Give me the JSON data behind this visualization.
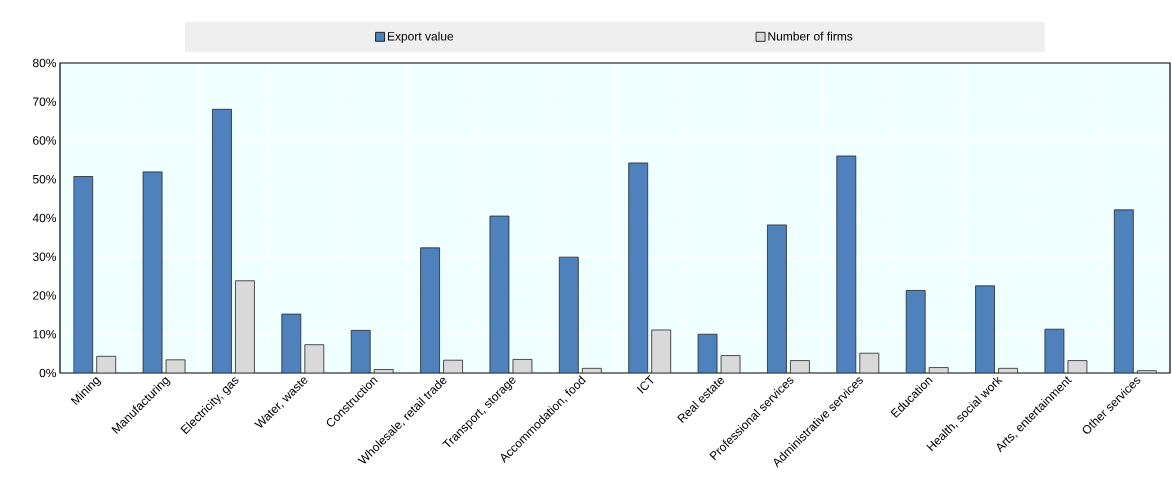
{
  "chart_data": {
    "type": "bar",
    "categories": [
      "Mining",
      "Manufacturing",
      "Electricity, gas",
      "Water, waste",
      "Construction",
      "Wholesale, retail trade",
      "Transport, storage",
      "Accommodation, food",
      "ICT",
      "Real estate",
      "Professional services",
      "Administrative services",
      "Education",
      "Health, social work",
      "Arts, entertainment",
      "Other services"
    ],
    "series": [
      {
        "name": "Export value",
        "color": "#4f81bd",
        "values": [
          50.7,
          51.9,
          68.1,
          15.2,
          11.0,
          32.3,
          40.5,
          29.9,
          54.2,
          10.0,
          38.2,
          56.0,
          21.3,
          22.5,
          11.3,
          42.1
        ]
      },
      {
        "name": "Number of firms",
        "color": "#d9d9d9",
        "values": [
          4.3,
          3.4,
          23.8,
          7.3,
          0.9,
          3.3,
          3.5,
          1.2,
          11.1,
          4.5,
          3.2,
          5.1,
          1.4,
          1.2,
          3.2,
          0.6
        ]
      }
    ],
    "ylim": [
      0,
      80
    ],
    "yticks": [
      {
        "value": 0,
        "label": "0%"
      },
      {
        "value": 10,
        "label": "10%"
      },
      {
        "value": 20,
        "label": "20%"
      },
      {
        "value": 30,
        "label": "30%"
      },
      {
        "value": 40,
        "label": "40%"
      },
      {
        "value": 50,
        "label": "50%"
      },
      {
        "value": 60,
        "label": "60%"
      },
      {
        "value": 70,
        "label": "70%"
      },
      {
        "value": 80,
        "label": "80%"
      }
    ],
    "grid": true,
    "legend": "top"
  }
}
